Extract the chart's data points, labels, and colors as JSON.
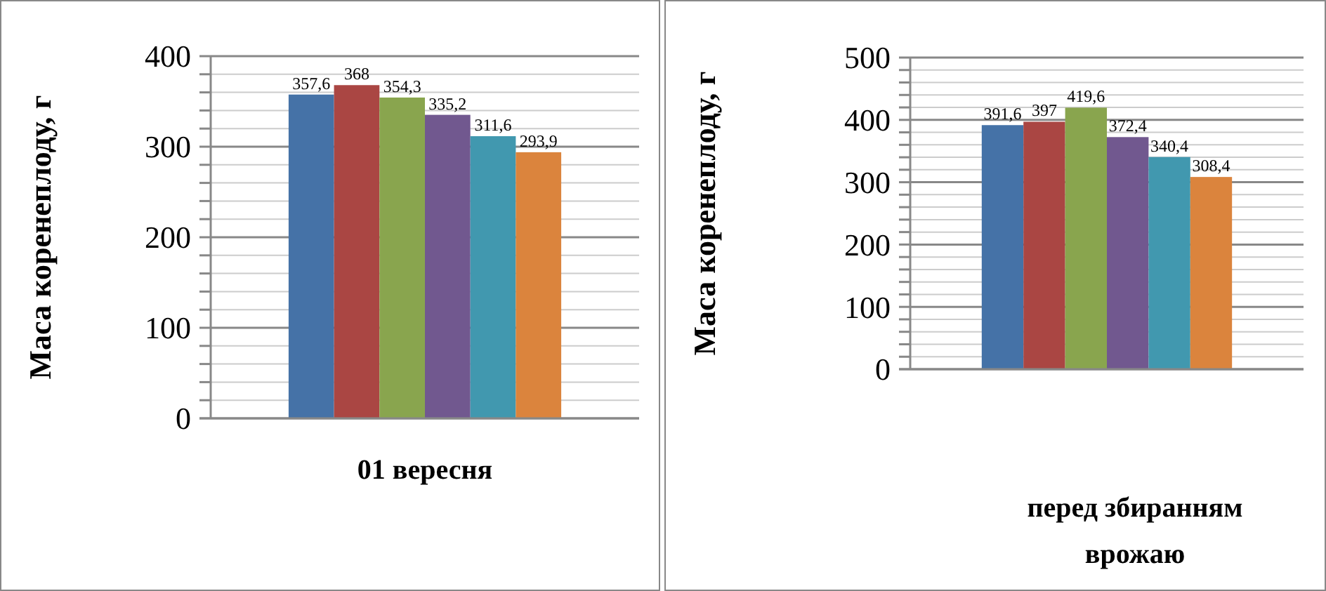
{
  "chart_data": [
    {
      "type": "bar",
      "ylabel": "Маса коренеплоду, г",
      "xlabel": "01 вересня",
      "categories": [
        null
      ],
      "ylim": [
        0,
        400
      ],
      "yticks": [
        0,
        {
          "value": 20,
          "label": null
        },
        {
          "value": 40,
          "label": null
        },
        {
          "value": 60,
          "label": null
        },
        {
          "value": 80,
          "label": null
        },
        100,
        {
          "value": 120,
          "label": null
        },
        {
          "value": 140,
          "label": null
        },
        {
          "value": 160,
          "label": null
        },
        {
          "value": 180,
          "label": null
        },
        200,
        {
          "value": 220,
          "label": null
        },
        {
          "value": 240,
          "label": null
        },
        {
          "value": 260,
          "label": null
        },
        {
          "value": 280,
          "label": null
        },
        300,
        {
          "value": 320,
          "label": null
        },
        {
          "value": 340,
          "label": null
        },
        {
          "value": 360,
          "label": null
        },
        {
          "value": 380,
          "label": null
        },
        400
      ],
      "grid": "y",
      "series": [
        {
          "color": "#4572a7",
          "values": [
            357.6
          ],
          "value_labels": [
            "357,6"
          ]
        },
        {
          "color": "#aa4643",
          "values": [
            368
          ],
          "value_labels": [
            "368"
          ]
        },
        {
          "color": "#89a54e",
          "values": [
            354.3
          ],
          "value_labels": [
            "354,3"
          ]
        },
        {
          "color": "#71588f",
          "values": [
            335.2
          ],
          "value_labels": [
            "335,2"
          ]
        },
        {
          "color": "#4198af",
          "values": [
            311.6
          ],
          "value_labels": [
            "311,6"
          ]
        },
        {
          "color": "#db843d",
          "values": [
            293.9
          ],
          "value_labels": [
            "293,9"
          ]
        }
      ]
    },
    {
      "type": "bar",
      "ylabel": "Маса коренеплоду, г",
      "xlabel": "перед збиранням врожаю",
      "categories": [
        null
      ],
      "ylim": [
        0,
        500
      ],
      "yticks": [
        0,
        {
          "value": 20,
          "label": null
        },
        {
          "value": 40,
          "label": null
        },
        {
          "value": 60,
          "label": null
        },
        {
          "value": 80,
          "label": null
        },
        100,
        {
          "value": 120,
          "label": null
        },
        {
          "value": 140,
          "label": null
        },
        {
          "value": 160,
          "label": null
        },
        {
          "value": 180,
          "label": null
        },
        200,
        {
          "value": 220,
          "label": null
        },
        {
          "value": 240,
          "label": null
        },
        {
          "value": 260,
          "label": null
        },
        {
          "value": 280,
          "label": null
        },
        300,
        {
          "value": 320,
          "label": null
        },
        {
          "value": 340,
          "label": null
        },
        {
          "value": 360,
          "label": null
        },
        {
          "value": 380,
          "label": null
        },
        400,
        {
          "value": 420,
          "label": null
        },
        {
          "value": 440,
          "label": null
        },
        {
          "value": 460,
          "label": null
        },
        {
          "value": 480,
          "label": null
        },
        500
      ],
      "grid": "y",
      "series": [
        {
          "color": "#4572a7",
          "values": [
            391.6
          ],
          "value_labels": [
            "391,6"
          ]
        },
        {
          "color": "#aa4643",
          "values": [
            397
          ],
          "value_labels": [
            "397"
          ]
        },
        {
          "color": "#89a54e",
          "values": [
            419.6
          ],
          "value_labels": [
            "419,6"
          ]
        },
        {
          "color": "#71588f",
          "values": [
            372.4
          ],
          "value_labels": [
            "372,4"
          ]
        },
        {
          "color": "#4198af",
          "values": [
            340.4
          ],
          "value_labels": [
            "340,4"
          ]
        },
        {
          "color": "#db843d",
          "values": [
            308.4
          ],
          "value_labels": [
            "308,4"
          ]
        }
      ]
    }
  ]
}
